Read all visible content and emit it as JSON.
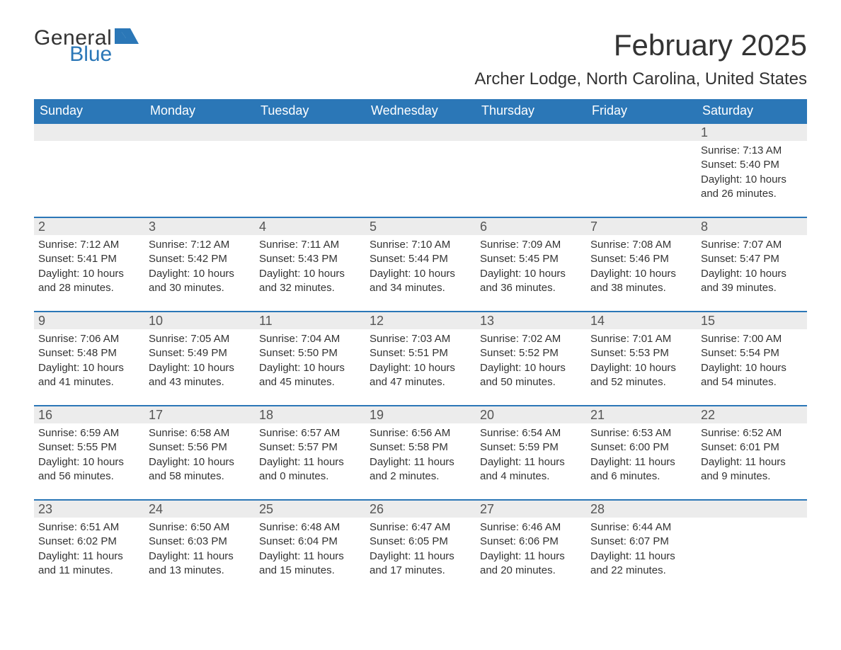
{
  "brand": {
    "text1": "General",
    "text2": "Blue",
    "flag_color": "#2b77b7"
  },
  "title": "February 2025",
  "location": "Archer Lodge, North Carolina, United States",
  "colors": {
    "header_bg": "#2b77b7",
    "header_text": "#ffffff",
    "daynum_bg": "#ececec",
    "border": "#2b77b7",
    "body_text": "#333333"
  },
  "typography": {
    "title_fontsize": 42,
    "location_fontsize": 24,
    "dow_fontsize": 18,
    "daynum_fontsize": 18,
    "body_fontsize": 15
  },
  "days_of_week": [
    "Sunday",
    "Monday",
    "Tuesday",
    "Wednesday",
    "Thursday",
    "Friday",
    "Saturday"
  ],
  "weeks": [
    [
      null,
      null,
      null,
      null,
      null,
      null,
      {
        "n": "1",
        "sunrise": "Sunrise: 7:13 AM",
        "sunset": "Sunset: 5:40 PM",
        "day1": "Daylight: 10 hours",
        "day2": "and 26 minutes."
      }
    ],
    [
      {
        "n": "2",
        "sunrise": "Sunrise: 7:12 AM",
        "sunset": "Sunset: 5:41 PM",
        "day1": "Daylight: 10 hours",
        "day2": "and 28 minutes."
      },
      {
        "n": "3",
        "sunrise": "Sunrise: 7:12 AM",
        "sunset": "Sunset: 5:42 PM",
        "day1": "Daylight: 10 hours",
        "day2": "and 30 minutes."
      },
      {
        "n": "4",
        "sunrise": "Sunrise: 7:11 AM",
        "sunset": "Sunset: 5:43 PM",
        "day1": "Daylight: 10 hours",
        "day2": "and 32 minutes."
      },
      {
        "n": "5",
        "sunrise": "Sunrise: 7:10 AM",
        "sunset": "Sunset: 5:44 PM",
        "day1": "Daylight: 10 hours",
        "day2": "and 34 minutes."
      },
      {
        "n": "6",
        "sunrise": "Sunrise: 7:09 AM",
        "sunset": "Sunset: 5:45 PM",
        "day1": "Daylight: 10 hours",
        "day2": "and 36 minutes."
      },
      {
        "n": "7",
        "sunrise": "Sunrise: 7:08 AM",
        "sunset": "Sunset: 5:46 PM",
        "day1": "Daylight: 10 hours",
        "day2": "and 38 minutes."
      },
      {
        "n": "8",
        "sunrise": "Sunrise: 7:07 AM",
        "sunset": "Sunset: 5:47 PM",
        "day1": "Daylight: 10 hours",
        "day2": "and 39 minutes."
      }
    ],
    [
      {
        "n": "9",
        "sunrise": "Sunrise: 7:06 AM",
        "sunset": "Sunset: 5:48 PM",
        "day1": "Daylight: 10 hours",
        "day2": "and 41 minutes."
      },
      {
        "n": "10",
        "sunrise": "Sunrise: 7:05 AM",
        "sunset": "Sunset: 5:49 PM",
        "day1": "Daylight: 10 hours",
        "day2": "and 43 minutes."
      },
      {
        "n": "11",
        "sunrise": "Sunrise: 7:04 AM",
        "sunset": "Sunset: 5:50 PM",
        "day1": "Daylight: 10 hours",
        "day2": "and 45 minutes."
      },
      {
        "n": "12",
        "sunrise": "Sunrise: 7:03 AM",
        "sunset": "Sunset: 5:51 PM",
        "day1": "Daylight: 10 hours",
        "day2": "and 47 minutes."
      },
      {
        "n": "13",
        "sunrise": "Sunrise: 7:02 AM",
        "sunset": "Sunset: 5:52 PM",
        "day1": "Daylight: 10 hours",
        "day2": "and 50 minutes."
      },
      {
        "n": "14",
        "sunrise": "Sunrise: 7:01 AM",
        "sunset": "Sunset: 5:53 PM",
        "day1": "Daylight: 10 hours",
        "day2": "and 52 minutes."
      },
      {
        "n": "15",
        "sunrise": "Sunrise: 7:00 AM",
        "sunset": "Sunset: 5:54 PM",
        "day1": "Daylight: 10 hours",
        "day2": "and 54 minutes."
      }
    ],
    [
      {
        "n": "16",
        "sunrise": "Sunrise: 6:59 AM",
        "sunset": "Sunset: 5:55 PM",
        "day1": "Daylight: 10 hours",
        "day2": "and 56 minutes."
      },
      {
        "n": "17",
        "sunrise": "Sunrise: 6:58 AM",
        "sunset": "Sunset: 5:56 PM",
        "day1": "Daylight: 10 hours",
        "day2": "and 58 minutes."
      },
      {
        "n": "18",
        "sunrise": "Sunrise: 6:57 AM",
        "sunset": "Sunset: 5:57 PM",
        "day1": "Daylight: 11 hours",
        "day2": "and 0 minutes."
      },
      {
        "n": "19",
        "sunrise": "Sunrise: 6:56 AM",
        "sunset": "Sunset: 5:58 PM",
        "day1": "Daylight: 11 hours",
        "day2": "and 2 minutes."
      },
      {
        "n": "20",
        "sunrise": "Sunrise: 6:54 AM",
        "sunset": "Sunset: 5:59 PM",
        "day1": "Daylight: 11 hours",
        "day2": "and 4 minutes."
      },
      {
        "n": "21",
        "sunrise": "Sunrise: 6:53 AM",
        "sunset": "Sunset: 6:00 PM",
        "day1": "Daylight: 11 hours",
        "day2": "and 6 minutes."
      },
      {
        "n": "22",
        "sunrise": "Sunrise: 6:52 AM",
        "sunset": "Sunset: 6:01 PM",
        "day1": "Daylight: 11 hours",
        "day2": "and 9 minutes."
      }
    ],
    [
      {
        "n": "23",
        "sunrise": "Sunrise: 6:51 AM",
        "sunset": "Sunset: 6:02 PM",
        "day1": "Daylight: 11 hours",
        "day2": "and 11 minutes."
      },
      {
        "n": "24",
        "sunrise": "Sunrise: 6:50 AM",
        "sunset": "Sunset: 6:03 PM",
        "day1": "Daylight: 11 hours",
        "day2": "and 13 minutes."
      },
      {
        "n": "25",
        "sunrise": "Sunrise: 6:48 AM",
        "sunset": "Sunset: 6:04 PM",
        "day1": "Daylight: 11 hours",
        "day2": "and 15 minutes."
      },
      {
        "n": "26",
        "sunrise": "Sunrise: 6:47 AM",
        "sunset": "Sunset: 6:05 PM",
        "day1": "Daylight: 11 hours",
        "day2": "and 17 minutes."
      },
      {
        "n": "27",
        "sunrise": "Sunrise: 6:46 AM",
        "sunset": "Sunset: 6:06 PM",
        "day1": "Daylight: 11 hours",
        "day2": "and 20 minutes."
      },
      {
        "n": "28",
        "sunrise": "Sunrise: 6:44 AM",
        "sunset": "Sunset: 6:07 PM",
        "day1": "Daylight: 11 hours",
        "day2": "and 22 minutes."
      },
      null
    ]
  ]
}
